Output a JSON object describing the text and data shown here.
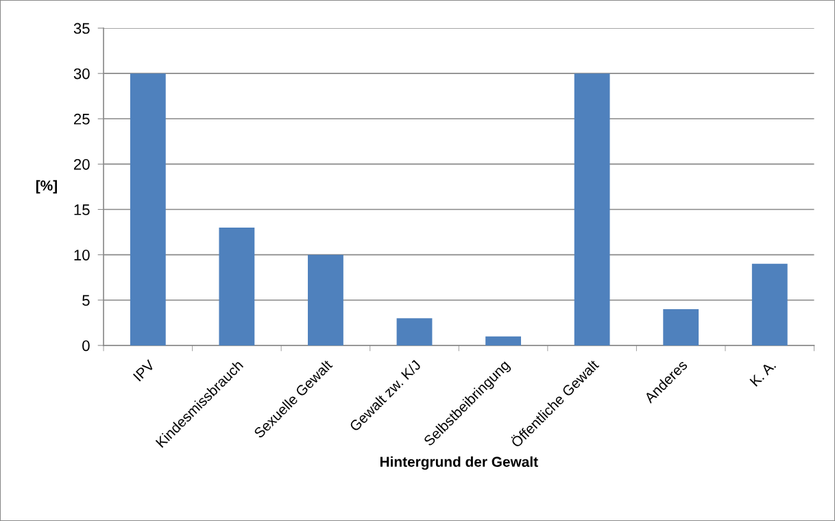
{
  "chart_data": {
    "type": "bar",
    "xlabel": "Hintergrund der Gewalt",
    "ylabel": "[%]",
    "categories": [
      "IPV",
      "Kindesmissbrauch",
      "Sexuelle Gewalt",
      "Gewalt zw. K/J",
      "Selbstbeibringung",
      "Öffentliche Gewalt",
      "Anderes",
      "K. A."
    ],
    "values": [
      30,
      13,
      10,
      3,
      1,
      30,
      4,
      9
    ],
    "color": "#4f81bd",
    "ylim": [
      0,
      35
    ],
    "yticks": [
      0,
      5,
      10,
      15,
      20,
      25,
      30,
      35
    ],
    "grid": "y",
    "legend": false
  }
}
